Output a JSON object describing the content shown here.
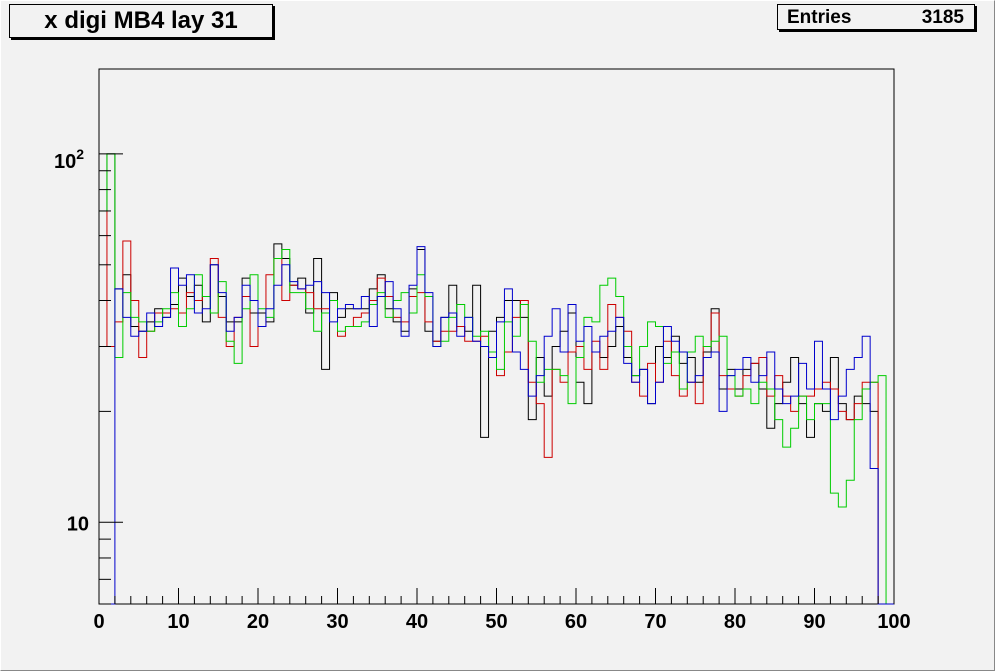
{
  "chart_data": {
    "type": "histogram",
    "title": "x digi MB4 lay 31",
    "stats": {
      "label": "Entries",
      "value": "3185"
    },
    "x_axis": {
      "min": 0,
      "max": 100,
      "tick_labels": [
        "0",
        "10",
        "20",
        "30",
        "40",
        "50",
        "60",
        "70",
        "80",
        "90",
        "100"
      ]
    },
    "y_axis": {
      "scale": "log",
      "min": 6,
      "max": 170,
      "tick_labels": [
        "10",
        "10^2"
      ]
    },
    "bins": {
      "start": 0,
      "width": 1,
      "count": 100
    },
    "series": [
      {
        "color": "#000000",
        "values": [
          70,
          100,
          43,
          47,
          34,
          33,
          35,
          38,
          36,
          39,
          46,
          41,
          44,
          35,
          50,
          41,
          35,
          35,
          46,
          37,
          37,
          35,
          57,
          52,
          44,
          46,
          37,
          52,
          26,
          42,
          36,
          38,
          38,
          38,
          43,
          47,
          38,
          35,
          33,
          43,
          55,
          33,
          31,
          36,
          44,
          34,
          33,
          44,
          17,
          33,
          36,
          40,
          40,
          36,
          19,
          28,
          22,
          30,
          33,
          37,
          24,
          21,
          29,
          28,
          30,
          34,
          28,
          25,
          26,
          21,
          30,
          28,
          32,
          27,
          28,
          24,
          29,
          38,
          23,
          26,
          23,
          26,
          27,
          23,
          18,
          21,
          24,
          28,
          21,
          17,
          21,
          20,
          28,
          21,
          19,
          22,
          21,
          20,
          6,
          6
        ]
      },
      {
        "color": "#cc0000",
        "values": [
          70,
          30,
          35,
          58,
          40,
          28,
          33,
          37,
          37,
          38,
          37,
          42,
          40,
          41,
          52,
          36,
          30,
          36,
          41,
          30,
          34,
          47,
          52,
          40,
          44,
          43,
          42,
          38,
          38,
          40,
          32,
          34,
          36,
          37,
          40,
          46,
          41,
          36,
          35,
          41,
          42,
          35,
          31,
          33,
          33,
          34,
          31,
          31,
          32,
          28,
          25,
          29,
          36,
          40,
          24,
          21,
          15,
          26,
          24,
          29,
          30,
          26,
          31,
          26,
          39,
          36,
          33,
          24,
          22,
          27,
          24,
          31,
          25,
          22,
          24,
          21,
          30,
          37,
          25,
          23,
          22,
          25,
          27,
          28,
          22,
          25,
          22,
          20,
          22,
          22,
          23,
          24,
          23,
          20,
          19,
          21,
          24,
          24,
          6,
          6
        ]
      },
      {
        "color": "#00cc00",
        "values": [
          70,
          100,
          28,
          42,
          36,
          35,
          33,
          35,
          38,
          42,
          34,
          38,
          47,
          41,
          37,
          45,
          31,
          27,
          38,
          47,
          38,
          36,
          52,
          55,
          42,
          42,
          38,
          33,
          37,
          40,
          33,
          34,
          34,
          35,
          39,
          42,
          36,
          40,
          42,
          37,
          47,
          41,
          30,
          31,
          36,
          39,
          36,
          32,
          33,
          29,
          26,
          35,
          32,
          39,
          31,
          24,
          26,
          26,
          25,
          21,
          28,
          36,
          35,
          44,
          46,
          41,
          30,
          25,
          30,
          35,
          34,
          27,
          29,
          23,
          29,
          32,
          30,
          31,
          32,
          25,
          22,
          23,
          21,
          24,
          23,
          19,
          16,
          18,
          22,
          19,
          21,
          21,
          12,
          11,
          13,
          19,
          23,
          24,
          25,
          6
        ]
      },
      {
        "color": "#0000cc",
        "values": [
          6,
          6,
          43,
          36,
          32,
          33,
          37,
          34,
          36,
          49,
          44,
          47,
          37,
          38,
          50,
          42,
          33,
          36,
          44,
          40,
          34,
          38,
          44,
          50,
          45,
          43,
          44,
          45,
          42,
          35,
          38,
          39,
          38,
          41,
          34,
          41,
          45,
          38,
          32,
          44,
          56,
          42,
          30,
          36,
          37,
          32,
          36,
          31,
          30,
          28,
          35,
          43,
          29,
          26,
          22,
          25,
          32,
          38,
          29,
          39,
          31,
          34,
          29,
          32,
          33,
          36,
          27,
          24,
          26,
          21,
          24,
          34,
          31,
          29,
          24,
          25,
          28,
          29,
          20,
          25,
          26,
          28,
          24,
          25,
          29,
          23,
          21,
          22,
          27,
          23,
          31,
          23,
          19,
          22,
          26,
          28,
          32,
          14,
          6,
          6
        ]
      }
    ]
  }
}
